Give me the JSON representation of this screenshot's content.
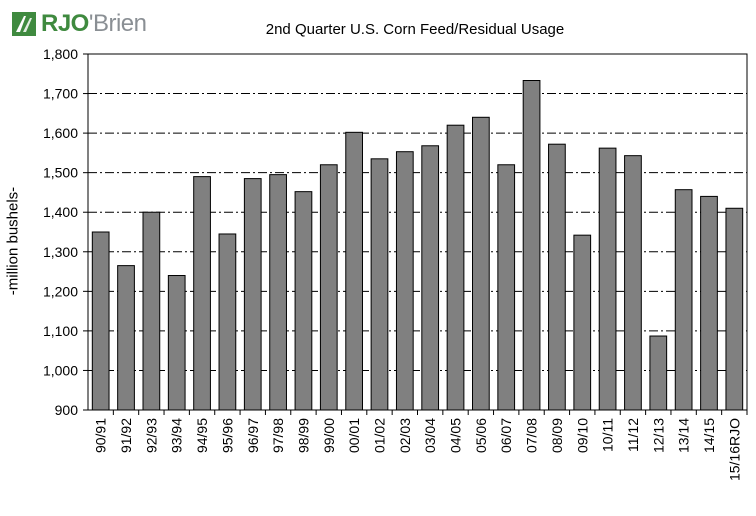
{
  "brand": {
    "logo_text": "RJO'Brien",
    "accent_color": "#3f8a3f",
    "secondary_color": "#8a8f94"
  },
  "chart_data": {
    "type": "bar",
    "title": "2nd Quarter U.S. Corn Feed/Residual Usage",
    "xlabel": "",
    "ylabel": "-million bushels-",
    "ylim": [
      900,
      1800
    ],
    "yticks": [
      "900",
      "1,000",
      "1,100",
      "1,200",
      "1,300",
      "1,400",
      "1,500",
      "1,600",
      "1,700",
      "1,800"
    ],
    "ytick_values": [
      900,
      1000,
      1100,
      1200,
      1300,
      1400,
      1500,
      1600,
      1700,
      1800
    ],
    "grid": "horizontal dash-dot",
    "bar_color": "#808080",
    "categories": [
      "90/91",
      "91/92",
      "92/93",
      "93/94",
      "94/95",
      "95/96",
      "96/97",
      "97/98",
      "98/99",
      "99/00",
      "00/01",
      "01/02",
      "02/03",
      "03/04",
      "04/05",
      "05/06",
      "06/07",
      "07/08",
      "08/09",
      "09/10",
      "10/11",
      "11/12",
      "12/13",
      "13/14",
      "14/15",
      "15/16RJO"
    ],
    "values": [
      1350,
      1265,
      1400,
      1240,
      1490,
      1345,
      1485,
      1495,
      1452,
      1520,
      1602,
      1535,
      1553,
      1568,
      1620,
      1640,
      1520,
      1733,
      1572,
      1342,
      1562,
      1543,
      1087,
      1457,
      1440,
      1410
    ]
  }
}
